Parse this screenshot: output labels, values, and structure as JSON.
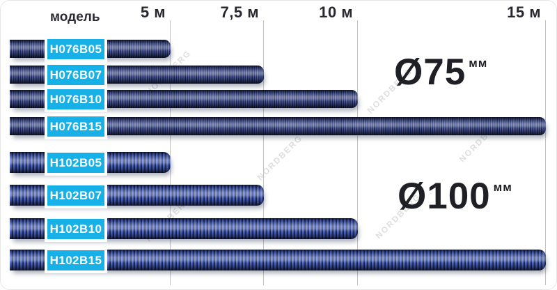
{
  "header": {
    "model_label": "модель",
    "ticks": [
      {
        "label": "5 м",
        "meters": 5
      },
      {
        "label": "7,5 м",
        "meters": 7.5
      },
      {
        "label": "10 м",
        "meters": 10
      },
      {
        "label": "15 м",
        "meters": 15
      }
    ]
  },
  "groups": [
    {
      "diameter": "Ø75",
      "diameter_unit": "мм",
      "rows": [
        {
          "model": "H076B05",
          "length_m": 5
        },
        {
          "model": "H076B07",
          "length_m": 7.5
        },
        {
          "model": "H076B10",
          "length_m": 10
        },
        {
          "model": "H076B15",
          "length_m": 15
        }
      ]
    },
    {
      "diameter": "Ø100",
      "diameter_unit": "мм",
      "rows": [
        {
          "model": "H102B05",
          "length_m": 5
        },
        {
          "model": "H102B07",
          "length_m": 7.5
        },
        {
          "model": "H102B10",
          "length_m": 10
        },
        {
          "model": "H102B15",
          "length_m": 15
        }
      ]
    }
  ],
  "watermark": "NORDBERG",
  "colors": {
    "badge_bg": "#17b1e8",
    "hose_blue_75": "#4d5ca8",
    "hose_blue_100": "#4b69d6",
    "text_dark": "#27272f",
    "gridline": "#aeaeb2"
  },
  "chart_data": {
    "type": "bar",
    "orientation": "horizontal",
    "x_tick_labels": [
      "5 м",
      "7,5 м",
      "10 м",
      "15 м"
    ],
    "x_tick_values": [
      5,
      7.5,
      10,
      15
    ],
    "xlim": [
      0,
      15.5
    ],
    "grid": true,
    "series": [
      {
        "name": "Ø75мм",
        "categories": [
          "H076B05",
          "H076B07",
          "H076B10",
          "H076B15"
        ],
        "values": [
          5,
          7.5,
          10,
          15
        ]
      },
      {
        "name": "Ø100мм",
        "categories": [
          "H102B05",
          "H102B07",
          "H102B10",
          "H102B15"
        ],
        "values": [
          5,
          7.5,
          10,
          15
        ]
      }
    ]
  }
}
